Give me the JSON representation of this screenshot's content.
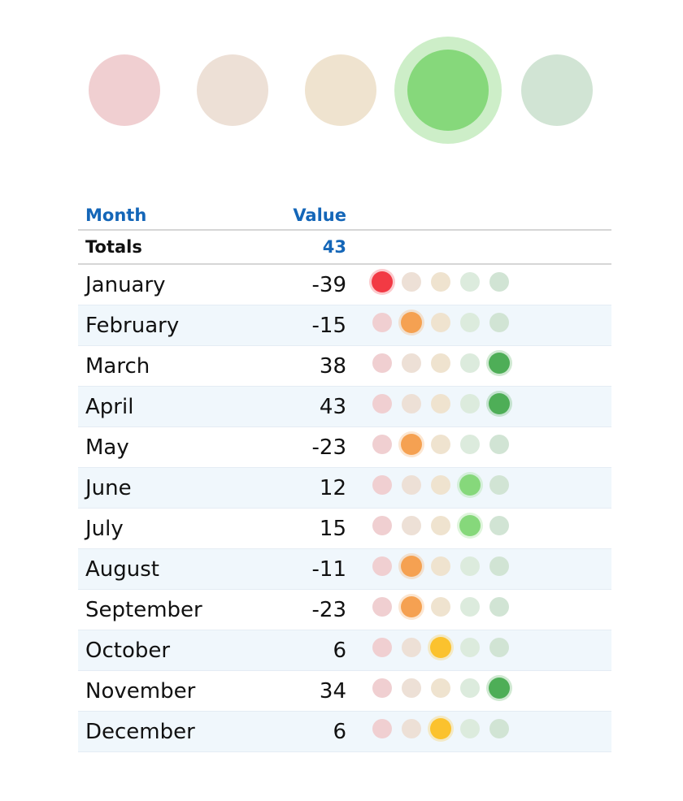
{
  "chart_data": {
    "type": "table",
    "columns": [
      "Month",
      "Value"
    ],
    "totals_label": "Totals",
    "total": 43,
    "categories": [
      "January",
      "February",
      "March",
      "April",
      "May",
      "June",
      "July",
      "August",
      "September",
      "October",
      "November",
      "December"
    ],
    "values": [
      -39,
      -15,
      38,
      43,
      -23,
      12,
      15,
      -11,
      -23,
      6,
      34,
      6
    ],
    "value_labels": [
      "-39",
      "-15",
      "38",
      "43",
      "-23",
      "12",
      "15",
      "-11",
      "-23",
      "6",
      "34",
      "6"
    ],
    "bucket_indicator_levels": [
      0,
      1,
      4,
      4,
      1,
      3,
      3,
      1,
      1,
      2,
      4,
      2
    ],
    "total_indicator_level": 3,
    "bucket_colors": {
      "active": [
        "#f23a44",
        "#f5a152",
        "#fbc22e",
        "#86d87b",
        "#4eae57"
      ],
      "faded": [
        "#f0cfd1",
        "#ede0d6",
        "#efe3cf",
        "#dcebdd",
        "#d1e4d4"
      ]
    }
  }
}
